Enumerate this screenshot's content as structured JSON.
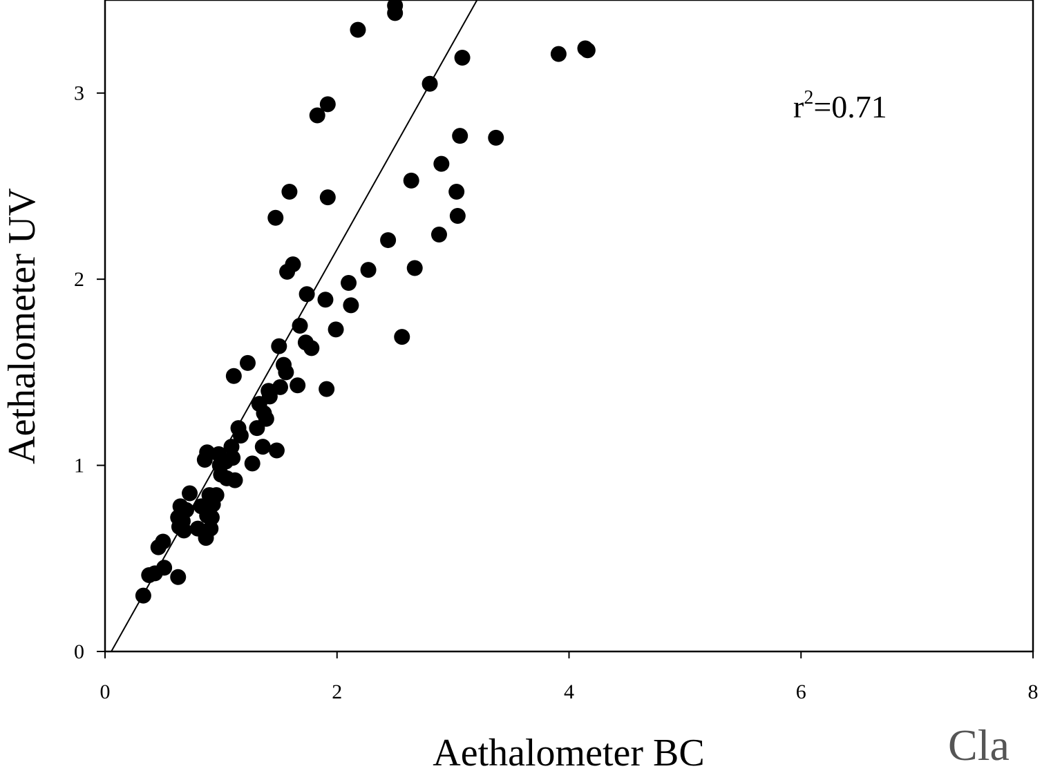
{
  "chart_data": {
    "type": "scatter",
    "title": "",
    "xlabel": "Aethalometer BC",
    "ylabel": "Aethalometer UV",
    "xlim": [
      0,
      8
    ],
    "ylim": [
      0,
      3.5
    ],
    "x_ticks": [
      "0",
      "2",
      "4",
      "6",
      "8"
    ],
    "y_ticks": [
      "0",
      "1",
      "2",
      "3"
    ],
    "grid": false,
    "annotation": {
      "base": "r",
      "sup": "2",
      "rest": "=0.71"
    },
    "fit_line": {
      "slope": 1.11,
      "intercept": -0.06
    },
    "marker_color": "#000000",
    "series": [
      {
        "x": [
          0.33,
          0.38,
          0.43,
          0.46,
          0.5,
          0.51,
          0.63,
          0.64,
          0.65,
          0.67,
          0.68,
          0.73,
          0.8,
          0.83,
          0.86,
          0.87,
          0.88,
          0.9,
          0.91,
          0.92,
          0.93,
          0.96,
          0.98,
          1.0,
          1.05,
          1.1,
          1.11,
          1.12,
          1.15,
          1.17,
          1.23,
          1.27,
          1.31,
          1.33,
          1.36,
          1.37,
          1.39,
          1.41,
          1.42,
          1.47,
          1.48,
          1.5,
          1.51,
          1.54,
          1.56,
          1.57,
          1.59,
          1.62,
          1.66,
          1.68,
          1.73,
          1.74,
          1.78,
          1.83,
          1.9,
          1.91,
          1.92,
          1.92,
          1.99,
          2.1,
          2.12,
          2.18,
          2.27,
          2.44,
          2.5,
          2.5,
          2.56,
          2.64,
          2.67,
          2.8,
          2.88,
          2.9,
          3.03,
          3.04,
          3.06,
          3.08,
          3.37,
          3.91,
          4.14,
          4.16,
          0.63,
          0.66,
          0.7,
          0.88,
          0.99,
          1.04,
          1.09
        ],
        "y": [
          0.3,
          0.41,
          0.42,
          0.56,
          0.59,
          0.45,
          0.4,
          0.67,
          0.78,
          0.7,
          0.65,
          0.85,
          0.66,
          0.78,
          1.03,
          0.61,
          1.07,
          0.84,
          0.66,
          0.72,
          0.79,
          0.84,
          1.06,
          0.95,
          0.93,
          1.04,
          1.48,
          0.92,
          1.2,
          1.16,
          1.55,
          1.01,
          1.2,
          1.33,
          1.1,
          1.28,
          1.25,
          1.4,
          1.37,
          2.33,
          1.08,
          1.64,
          1.42,
          1.54,
          1.5,
          2.04,
          2.47,
          2.08,
          1.43,
          1.75,
          1.66,
          1.92,
          1.63,
          2.88,
          1.89,
          1.41,
          2.44,
          2.94,
          1.73,
          1.98,
          1.86,
          3.34,
          2.05,
          2.21,
          3.47,
          3.43,
          1.69,
          2.53,
          2.06,
          3.05,
          2.24,
          2.62,
          2.47,
          2.34,
          2.77,
          3.19,
          2.76,
          3.21,
          3.24,
          3.23,
          0.72,
          0.74,
          0.76,
          0.73,
          1.0,
          1.02,
          1.1
        ]
      }
    ]
  },
  "watermark": "Cla"
}
